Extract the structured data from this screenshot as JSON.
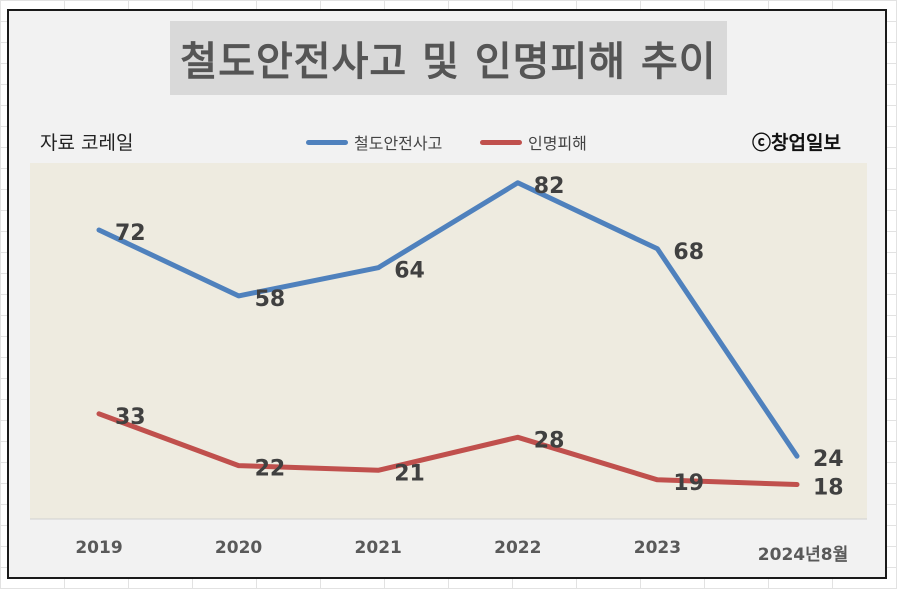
{
  "title": "철도안전사고 및 인명피해 추이",
  "source": "자료 코레일",
  "copyright": "ⓒ창업일보",
  "chart_data": {
    "type": "line",
    "categories": [
      "2019",
      "2020",
      "2021",
      "2022",
      "2023",
      "2024년8월"
    ],
    "series": [
      {
        "name": "철도안전사고",
        "color": "#4f81bd",
        "values": [
          72,
          58,
          64,
          82,
          68,
          24
        ]
      },
      {
        "name": "인명피해",
        "color": "#c0504d",
        "values": [
          33,
          22,
          21,
          28,
          19,
          18
        ]
      }
    ],
    "ylim": [
      0,
      90
    ],
    "legend_position": "top-center",
    "plot_background": "#eeebe0",
    "grid": false,
    "data_labels": true
  }
}
